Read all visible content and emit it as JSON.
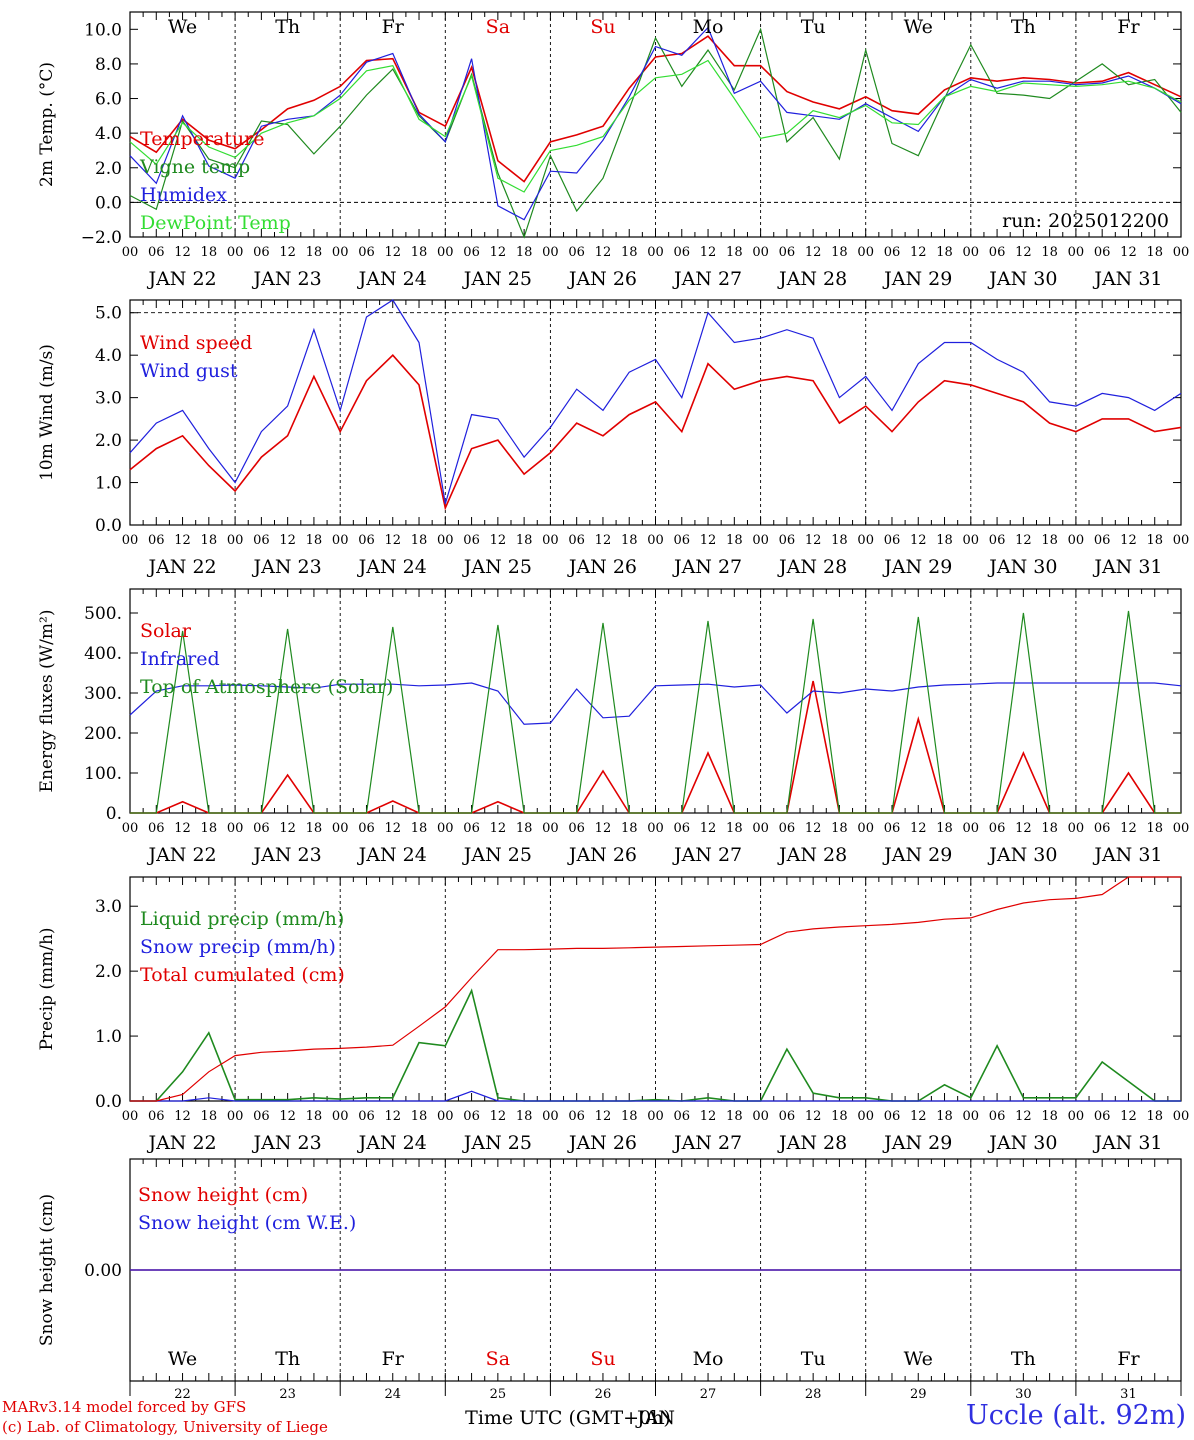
{
  "footer": {
    "model": "MARv3.14 model forced by GFS",
    "credit": "(c) Lab. of Climatology, University of Liege",
    "station": "Uccle (alt. 92m)",
    "xlabel": "Time UTC (GMT+0h)",
    "month_label": "JAN"
  },
  "run_label": "run: 2025012200",
  "date_labels": [
    "JAN 22",
    "JAN 23",
    "JAN 24",
    "JAN 25",
    "JAN 26",
    "JAN 27",
    "JAN 28",
    "JAN 29",
    "JAN 30",
    "JAN 31"
  ],
  "hour_ticks": [
    "00",
    "06",
    "12",
    "18"
  ],
  "weekdays": [
    "We",
    "Th",
    "Fr",
    "Sa",
    "Su",
    "Mo",
    "Tu",
    "We",
    "Th",
    "Fr"
  ],
  "weekend_color": "#e00000",
  "day_numbers": [
    "22",
    "23",
    "24",
    "25",
    "26",
    "27",
    "28",
    "29",
    "30",
    "31"
  ],
  "colors": {
    "red": "#e00000",
    "green": "#1f8a1f",
    "blue": "#2020dd",
    "lightgreen": "#33dd33"
  },
  "chart_data": [
    {
      "type": "line",
      "ylabel": "2m Temp. (°C)",
      "ylim": [
        -2,
        11
      ],
      "yticks": [
        "−2.0",
        "0.0",
        "2.0",
        "4.0",
        "6.0",
        "8.0",
        "10.0"
      ],
      "hlines": [
        0
      ],
      "x": [
        0,
        6,
        12,
        18,
        24,
        30,
        36,
        42,
        48,
        54,
        60,
        66,
        72,
        78,
        84,
        90,
        96,
        102,
        108,
        114,
        120,
        126,
        132,
        138,
        144,
        150,
        156,
        162,
        168,
        174,
        180,
        186,
        192,
        198,
        204,
        210,
        216,
        222,
        228,
        234,
        240
      ],
      "series": [
        {
          "name": "Temperature",
          "color": "#e00000",
          "values": [
            3.8,
            2.9,
            4.8,
            3.6,
            3.1,
            4.2,
            5.4,
            5.9,
            6.7,
            8.2,
            8.3,
            5.2,
            4.4,
            7.8,
            2.4,
            1.2,
            3.5,
            3.9,
            4.4,
            6.6,
            8.4,
            8.6,
            9.6,
            7.9,
            7.9,
            6.4,
            5.8,
            5.4,
            6.1,
            5.3,
            5.1,
            6.5,
            7.2,
            7.0,
            7.2,
            7.1,
            6.9,
            7.0,
            7.5,
            6.8,
            6.1
          ]
        },
        {
          "name": "Vigne temp",
          "color": "#1f8a1f",
          "values": [
            0.4,
            -0.4,
            4.7,
            2.5,
            2.0,
            4.7,
            4.5,
            2.8,
            4.4,
            6.2,
            7.7,
            5.0,
            3.5,
            7.4,
            1.7,
            -3.0,
            2.7,
            -0.5,
            1.4,
            5.4,
            9.5,
            6.7,
            8.8,
            6.5,
            10.0,
            3.5,
            4.9,
            2.5,
            8.8,
            3.4,
            2.7,
            6.0,
            9.1,
            6.3,
            6.2,
            6.0,
            7.0,
            8.0,
            6.8,
            7.1,
            5.2
          ]
        },
        {
          "name": "Humidex",
          "color": "#2020dd",
          "values": [
            2.7,
            1.1,
            5.0,
            2.1,
            1.4,
            4.4,
            4.8,
            5.0,
            6.2,
            8.1,
            8.6,
            5.1,
            3.5,
            8.3,
            -0.2,
            -1.0,
            1.8,
            1.7,
            3.6,
            6.1,
            9.0,
            8.5,
            10.1,
            6.3,
            7.0,
            5.2,
            5.0,
            4.8,
            5.7,
            4.9,
            4.1,
            6.1,
            7.1,
            6.6,
            7.0,
            7.0,
            6.8,
            6.9,
            7.3,
            6.6,
            5.7
          ]
        },
        {
          "name": "DewPoint Temp",
          "color": "#33dd33",
          "values": [
            3.5,
            2.2,
            4.6,
            3.2,
            2.6,
            4.0,
            4.6,
            5.0,
            6.0,
            7.6,
            7.9,
            4.8,
            3.8,
            7.3,
            1.4,
            0.6,
            3.0,
            3.3,
            3.8,
            5.9,
            7.2,
            7.4,
            8.2,
            6.0,
            3.7,
            4.0,
            5.3,
            4.9,
            5.6,
            4.6,
            4.5,
            6.1,
            6.7,
            6.4,
            6.9,
            6.8,
            6.7,
            6.8,
            7.0,
            6.6,
            5.8
          ]
        }
      ]
    },
    {
      "type": "line",
      "ylabel": "10m Wind (m/s)",
      "ylim": [
        0,
        5.3
      ],
      "yticks": [
        "0.0",
        "1.0",
        "2.0",
        "3.0",
        "4.0",
        "5.0"
      ],
      "hlines": [
        5
      ],
      "x": [
        0,
        6,
        12,
        18,
        24,
        30,
        36,
        42,
        48,
        54,
        60,
        66,
        72,
        78,
        84,
        90,
        96,
        102,
        108,
        114,
        120,
        126,
        132,
        138,
        144,
        150,
        156,
        162,
        168,
        174,
        180,
        186,
        192,
        198,
        204,
        210,
        216,
        222,
        228,
        234,
        240
      ],
      "series": [
        {
          "name": "Wind speed",
          "color": "#e00000",
          "values": [
            1.3,
            1.8,
            2.1,
            1.4,
            0.8,
            1.6,
            2.1,
            3.5,
            2.2,
            3.4,
            4.0,
            3.3,
            0.4,
            1.8,
            2.0,
            1.2,
            1.7,
            2.4,
            2.1,
            2.6,
            2.9,
            2.2,
            3.8,
            3.2,
            3.4,
            3.5,
            3.4,
            2.4,
            2.8,
            2.2,
            2.9,
            3.4,
            3.3,
            3.1,
            2.9,
            2.4,
            2.2,
            2.5,
            2.5,
            2.2,
            2.3
          ]
        },
        {
          "name": "Wind gust",
          "color": "#2020dd",
          "values": [
            1.7,
            2.4,
            2.7,
            1.8,
            1.0,
            2.2,
            2.8,
            4.6,
            2.7,
            4.9,
            5.3,
            4.3,
            0.5,
            2.6,
            2.5,
            1.6,
            2.3,
            3.2,
            2.7,
            3.6,
            3.9,
            3.0,
            5.0,
            4.3,
            4.4,
            4.6,
            4.4,
            3.0,
            3.5,
            2.7,
            3.8,
            4.3,
            4.3,
            3.9,
            3.6,
            2.9,
            2.8,
            3.1,
            3.0,
            2.7,
            3.1
          ]
        }
      ]
    },
    {
      "type": "line",
      "ylabel": "Energy fluxes (W/m²)",
      "ylim": [
        0,
        560
      ],
      "yticks": [
        "0.",
        "100.",
        "200.",
        "300.",
        "400.",
        "500."
      ],
      "x": [
        0,
        6,
        12,
        18,
        24,
        30,
        36,
        42,
        48,
        54,
        60,
        66,
        72,
        78,
        84,
        90,
        96,
        102,
        108,
        114,
        120,
        126,
        132,
        138,
        144,
        150,
        156,
        162,
        168,
        174,
        180,
        186,
        192,
        198,
        204,
        210,
        216,
        222,
        228,
        234,
        240
      ],
      "series": [
        {
          "name": "Solar",
          "color": "#e00000",
          "values": [
            0,
            0,
            28,
            0,
            0,
            0,
            95,
            0,
            0,
            0,
            30,
            0,
            0,
            0,
            28,
            0,
            0,
            0,
            105,
            0,
            0,
            0,
            150,
            0,
            0,
            0,
            330,
            0,
            0,
            0,
            235,
            0,
            0,
            0,
            150,
            0,
            0,
            0,
            100,
            0,
            0
          ]
        },
        {
          "name": "Infrared",
          "color": "#2020dd",
          "values": [
            245,
            305,
            318,
            318,
            320,
            318,
            315,
            312,
            322,
            322,
            322,
            318,
            320,
            325,
            305,
            222,
            225,
            310,
            238,
            242,
            318,
            320,
            322,
            315,
            320,
            250,
            305,
            300,
            310,
            305,
            315,
            320,
            322,
            325,
            325,
            325,
            325,
            325,
            325,
            325,
            318
          ]
        },
        {
          "name": "Top of Atmosphere (Solar)",
          "color": "#1f8a1f",
          "values": [
            0,
            0,
            455,
            0,
            0,
            0,
            460,
            0,
            0,
            0,
            465,
            0,
            0,
            0,
            470,
            0,
            0,
            0,
            475,
            0,
            0,
            0,
            480,
            0,
            0,
            0,
            485,
            0,
            0,
            0,
            490,
            0,
            0,
            0,
            500,
            0,
            0,
            0,
            505,
            0,
            0
          ]
        }
      ]
    },
    {
      "type": "line",
      "ylabel": "Precip (mm/h)",
      "ylim": [
        0,
        3.45
      ],
      "yticks": [
        "0.0",
        "1.0",
        "2.0",
        "3.0"
      ],
      "x": [
        0,
        6,
        12,
        18,
        24,
        30,
        36,
        42,
        48,
        54,
        60,
        66,
        72,
        78,
        84,
        90,
        96,
        102,
        108,
        114,
        120,
        126,
        132,
        138,
        144,
        150,
        156,
        162,
        168,
        174,
        180,
        186,
        192,
        198,
        204,
        210,
        216,
        222,
        228,
        234,
        240
      ],
      "series": [
        {
          "name": "Liquid precip (mm/h)",
          "color": "#1f8a1f",
          "values": [
            0,
            0,
            0.45,
            1.05,
            0.02,
            0.02,
            0.02,
            0.05,
            0.03,
            0.05,
            0.05,
            0.9,
            0.85,
            1.7,
            0.05,
            0,
            0,
            0,
            0,
            0,
            0.02,
            0,
            0.05,
            0,
            0,
            0.8,
            0.12,
            0.05,
            0.05,
            0,
            0,
            0.25,
            0.05,
            0.85,
            0.05,
            0.05,
            0.05,
            0.6,
            0.3,
            0,
            0
          ]
        },
        {
          "name": "Snow precip (mm/h)",
          "color": "#2020dd",
          "values": [
            0,
            0,
            0,
            0.05,
            0,
            0,
            0,
            0,
            0,
            0,
            0,
            0,
            0,
            0.15,
            0,
            0,
            0,
            0,
            0,
            0,
            0,
            0,
            0,
            0,
            0,
            0,
            0,
            0,
            0,
            0,
            0,
            0,
            0,
            0,
            0,
            0,
            0,
            0,
            0,
            0,
            0
          ]
        },
        {
          "name": "Total cumulated (cm)",
          "color": "#e00000",
          "values": [
            0,
            0,
            0.1,
            0.45,
            0.7,
            0.75,
            0.77,
            0.8,
            0.81,
            0.83,
            0.86,
            1.15,
            1.45,
            1.9,
            2.33,
            2.33,
            2.34,
            2.35,
            2.35,
            2.36,
            2.37,
            2.38,
            2.39,
            2.4,
            2.41,
            2.6,
            2.65,
            2.68,
            2.7,
            2.72,
            2.75,
            2.8,
            2.82,
            2.95,
            3.05,
            3.1,
            3.12,
            3.18,
            3.45,
            3.45,
            3.45
          ]
        }
      ]
    },
    {
      "type": "line",
      "ylabel": "Snow height (cm)",
      "ylim": [
        -1,
        1
      ],
      "yticks": [
        "0.00"
      ],
      "x": [
        0,
        240
      ],
      "series": [
        {
          "name": "Snow height (cm)",
          "color": "#e00000",
          "values": [
            0,
            0
          ]
        },
        {
          "name": "Snow height (cm W.E.)",
          "color": "#2020dd",
          "values": [
            0,
            0
          ]
        }
      ]
    }
  ]
}
